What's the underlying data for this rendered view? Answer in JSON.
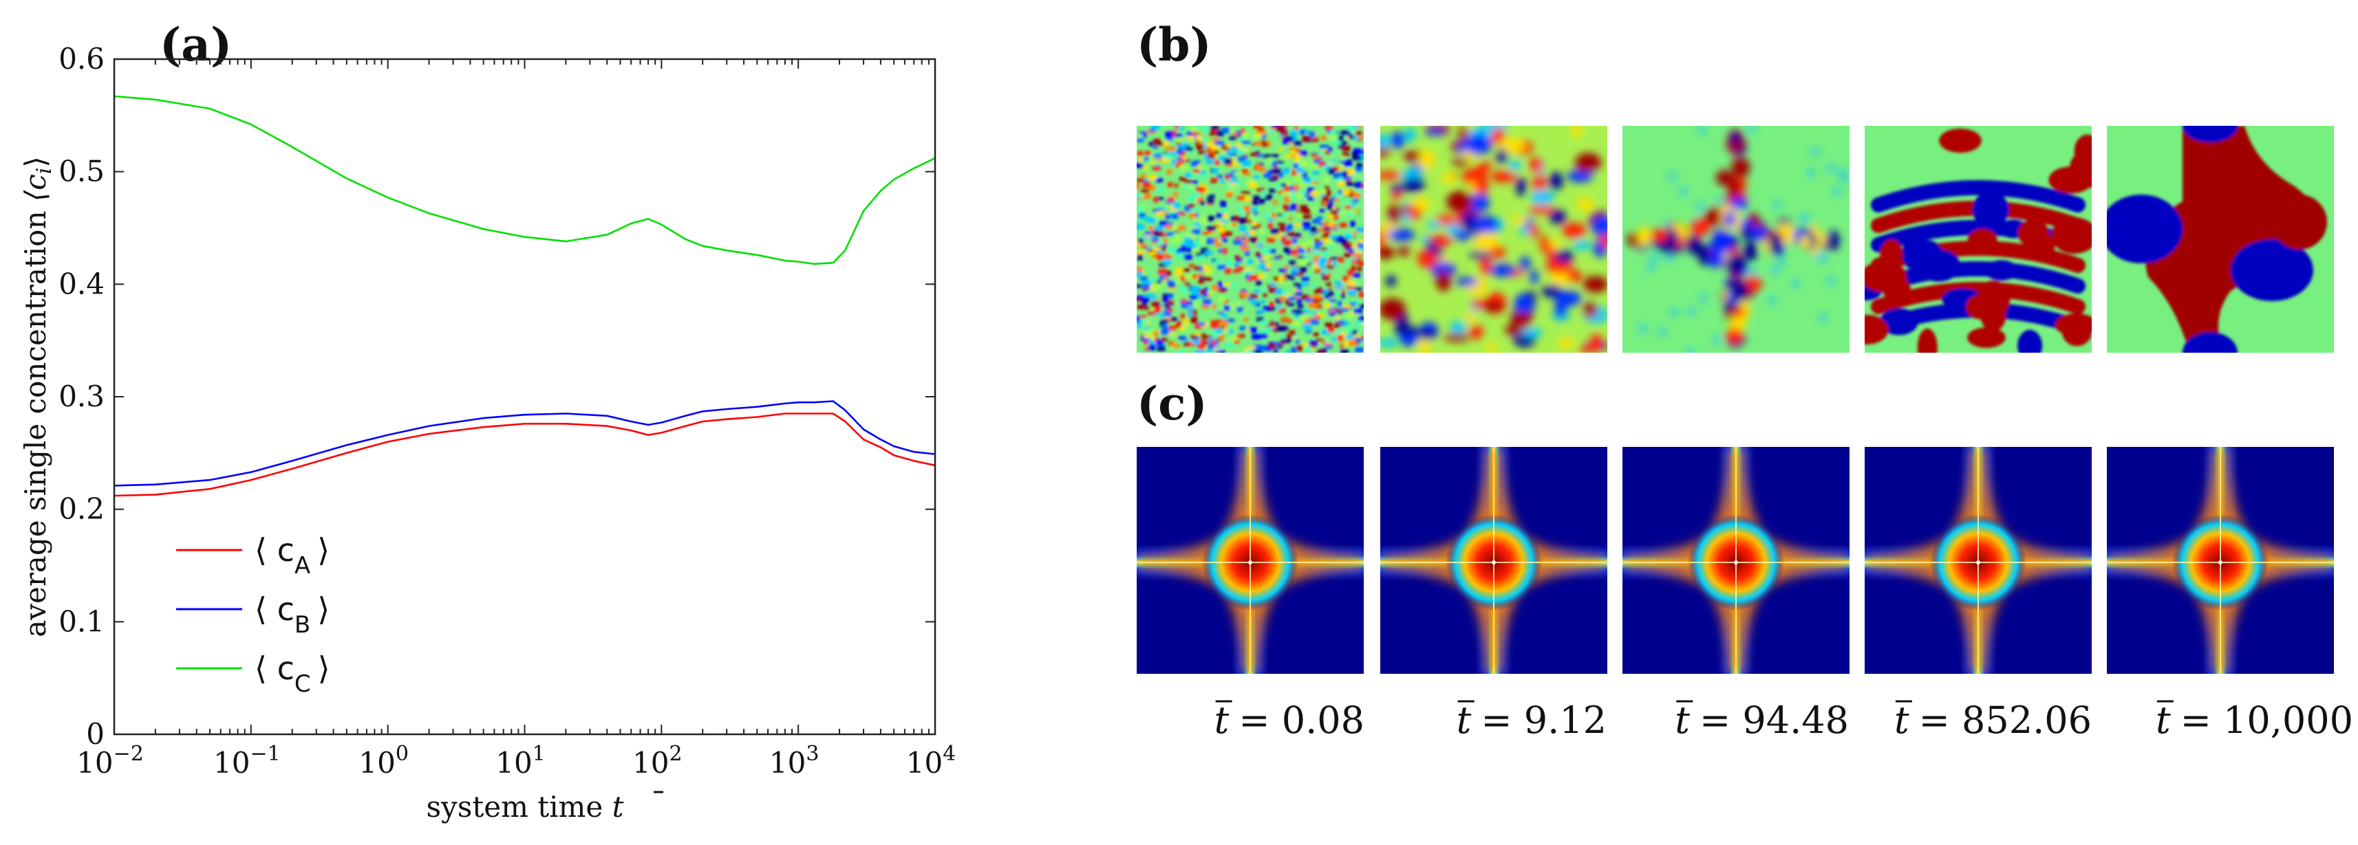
{
  "chart_data": [
    {
      "type": "line",
      "panel": "(a)",
      "xscale": "log",
      "xlim": [
        0.01,
        10000
      ],
      "ylim": [
        0,
        0.6
      ],
      "xlabel": "system time t̄",
      "ylabel": "average single concentration ⟨c_i⟩",
      "xticks": [
        {
          "value": 0.01,
          "base": "10",
          "exp": "−2"
        },
        {
          "value": 0.1,
          "base": "10",
          "exp": "−1"
        },
        {
          "value": 1,
          "base": "10",
          "exp": "0"
        },
        {
          "value": 10,
          "base": "10",
          "exp": "1"
        },
        {
          "value": 100,
          "base": "10",
          "exp": "2"
        },
        {
          "value": 1000,
          "base": "10",
          "exp": "3"
        },
        {
          "value": 10000,
          "base": "10",
          "exp": "4"
        }
      ],
      "yticks": [
        "0",
        "0.1",
        "0.2",
        "0.3",
        "0.4",
        "0.5",
        "0.6"
      ],
      "legend_position": "bottom-left",
      "series": [
        {
          "name": "c_A",
          "legend_sub": "A",
          "color": "#ff0000",
          "x": [
            0.01,
            0.02,
            0.05,
            0.1,
            0.2,
            0.5,
            1,
            2,
            5,
            10,
            20,
            40,
            60,
            80,
            100,
            150,
            200,
            300,
            500,
            800,
            1000,
            1300,
            1800,
            2200,
            3000,
            4000,
            5000,
            7000,
            10000
          ],
          "y": [
            0.212,
            0.213,
            0.218,
            0.226,
            0.236,
            0.25,
            0.26,
            0.267,
            0.273,
            0.276,
            0.276,
            0.274,
            0.27,
            0.266,
            0.268,
            0.274,
            0.278,
            0.28,
            0.282,
            0.285,
            0.285,
            0.285,
            0.285,
            0.278,
            0.262,
            0.255,
            0.248,
            0.243,
            0.239
          ]
        },
        {
          "name": "c_B",
          "legend_sub": "B",
          "color": "#0000ff",
          "x": [
            0.01,
            0.02,
            0.05,
            0.1,
            0.2,
            0.5,
            1,
            2,
            5,
            10,
            20,
            40,
            60,
            80,
            100,
            150,
            200,
            300,
            500,
            800,
            1000,
            1300,
            1800,
            2200,
            3000,
            4000,
            5000,
            7000,
            10000
          ],
          "y": [
            0.221,
            0.222,
            0.226,
            0.233,
            0.243,
            0.257,
            0.266,
            0.274,
            0.281,
            0.284,
            0.285,
            0.283,
            0.278,
            0.275,
            0.277,
            0.283,
            0.287,
            0.289,
            0.291,
            0.294,
            0.295,
            0.295,
            0.296,
            0.288,
            0.271,
            0.262,
            0.256,
            0.251,
            0.249
          ]
        },
        {
          "name": "c_C",
          "legend_sub": "C",
          "color": "#00e000",
          "x": [
            0.01,
            0.02,
            0.05,
            0.1,
            0.2,
            0.5,
            1,
            2,
            5,
            10,
            20,
            40,
            60,
            80,
            100,
            150,
            200,
            300,
            500,
            800,
            1000,
            1300,
            1800,
            2200,
            3000,
            4000,
            5000,
            7000,
            10000
          ],
          "y": [
            0.567,
            0.564,
            0.556,
            0.542,
            0.522,
            0.494,
            0.477,
            0.463,
            0.449,
            0.442,
            0.438,
            0.444,
            0.454,
            0.458,
            0.453,
            0.44,
            0.434,
            0.43,
            0.426,
            0.421,
            0.42,
            0.418,
            0.419,
            0.43,
            0.465,
            0.483,
            0.493,
            0.503,
            0.512
          ]
        }
      ]
    },
    {
      "type": "image_grid",
      "panel": "(b)",
      "description_colormap": "jet",
      "images": [
        "snapshot-1",
        "snapshot-2",
        "snapshot-3",
        "snapshot-4",
        "snapshot-5"
      ]
    },
    {
      "type": "image_grid",
      "panel": "(c)",
      "description_colormap": "jet",
      "images": [
        "correlation-1",
        "correlation-2",
        "correlation-3",
        "correlation-4",
        "correlation-5"
      ],
      "time_labels": [
        "t̄ = 0.08",
        "t̄ = 9.12",
        "t̄ = 94.48",
        "t̄ = 852.06",
        "t̄ = 10,000"
      ]
    }
  ],
  "labels": {
    "panel_a": "(a)",
    "panel_b": "(b)",
    "panel_c": "(c)",
    "xlabel_text": "system time ",
    "xlabel_var": "t",
    "ylabel_text": "average single concentration ",
    "ylabel_var": "⟨c",
    "ylabel_sub": "i",
    "ylabel_close": "⟩",
    "legend_open": "⟨ c",
    "legend_close": "⟩",
    "time_prefix": "t",
    "time_values": [
      "= 0.08",
      "= 9.12",
      "= 94.48",
      "= 852.06",
      "= 10,000"
    ]
  }
}
